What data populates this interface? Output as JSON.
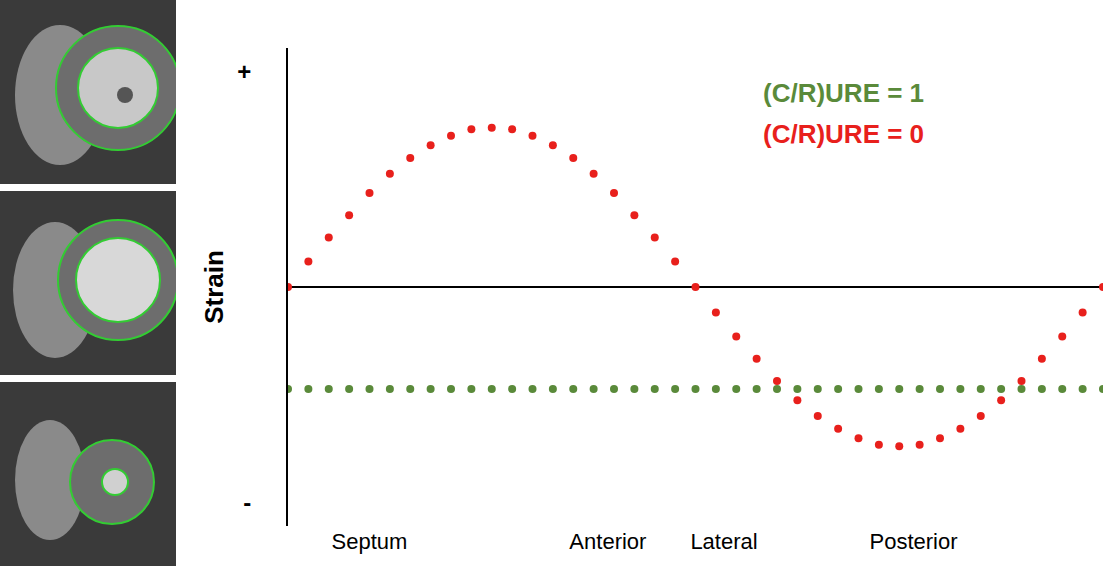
{
  "chart_data": {
    "type": "line",
    "y_label": "Strain",
    "x": [
      0,
      1,
      2,
      3,
      4,
      5,
      6,
      7,
      8,
      9,
      10,
      11,
      12,
      13,
      14,
      15,
      16,
      17,
      18,
      19,
      20,
      21,
      22,
      23,
      24,
      25,
      26,
      27,
      28,
      29,
      30,
      31,
      32,
      33,
      34,
      35,
      36,
      37,
      38,
      39,
      40
    ],
    "xlim": [
      0,
      40
    ],
    "xticks": [
      {
        "value": 4,
        "label": "Septum"
      },
      {
        "value": 15.7,
        "label": "Anterior"
      },
      {
        "value": 21.4,
        "label": "Lateral"
      },
      {
        "value": 30.7,
        "label": "Posterior"
      }
    ],
    "ylim": [
      -1.5,
      1.5
    ],
    "yticks": [
      {
        "value": 1.35,
        "label": "+"
      },
      {
        "value": -1.35,
        "label": "-"
      }
    ],
    "grid": false,
    "series": [
      {
        "name": "(C/R)URE = 1",
        "color": "#5a8a3a",
        "marker": "circle",
        "line_style": "none",
        "values": [
          -0.64,
          -0.64,
          -0.64,
          -0.64,
          -0.64,
          -0.64,
          -0.64,
          -0.64,
          -0.64,
          -0.64,
          -0.64,
          -0.64,
          -0.64,
          -0.64,
          -0.64,
          -0.64,
          -0.64,
          -0.64,
          -0.64,
          -0.64,
          -0.64,
          -0.64,
          -0.64,
          -0.64,
          -0.64,
          -0.64,
          -0.64,
          -0.64,
          -0.64,
          -0.64,
          -0.64,
          -0.64,
          -0.64,
          -0.64,
          -0.64,
          -0.64,
          -0.64,
          -0.64,
          -0.64,
          -0.64,
          -0.64
        ]
      },
      {
        "name": "(C/R)URE = 0",
        "color": "#e8201c",
        "marker": "circle",
        "line_style": "none",
        "values": [
          0,
          0.16,
          0.31,
          0.45,
          0.59,
          0.71,
          0.81,
          0.89,
          0.95,
          0.99,
          1,
          0.99,
          0.95,
          0.89,
          0.81,
          0.71,
          0.59,
          0.45,
          0.31,
          0.16,
          0,
          -0.16,
          -0.31,
          -0.45,
          -0.59,
          -0.71,
          -0.81,
          -0.89,
          -0.95,
          -0.99,
          -1,
          -0.99,
          -0.95,
          -0.89,
          -0.81,
          -0.71,
          -0.59,
          -0.45,
          -0.31,
          -0.16,
          0
        ]
      }
    ]
  }
}
